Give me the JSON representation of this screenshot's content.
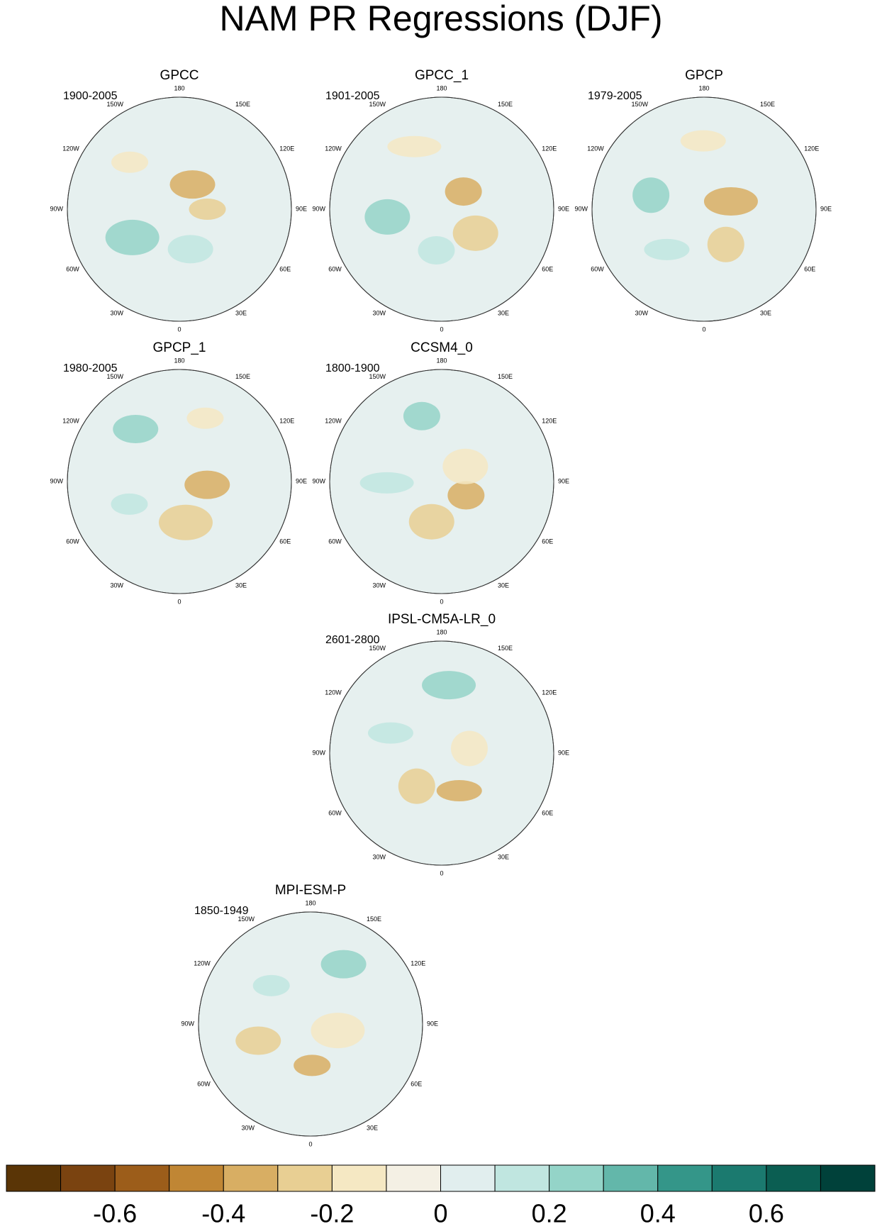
{
  "title": "NAM PR Regressions (DJF)",
  "longitude_labels": [
    "180",
    "150E",
    "120E",
    "90E",
    "60E",
    "30E",
    "0",
    "30W",
    "60W",
    "90W",
    "120W",
    "150W"
  ],
  "panels": [
    {
      "name": "GPCC",
      "period": "1900-2005"
    },
    {
      "name": "GPCC_1",
      "period": "1901-2005"
    },
    {
      "name": "GPCP",
      "period": "1979-2005"
    },
    {
      "name": "GPCP_1",
      "period": "1980-2005"
    },
    {
      "name": "CCSM4_0",
      "period": "1800-1900"
    },
    {
      "name": "IPSL-CM5A-LR_0",
      "period": "2601-2800"
    },
    {
      "name": "MPI-ESM-P",
      "period": "1850-1949"
    }
  ],
  "colorbar": {
    "lim": [
      -0.8,
      0.8
    ],
    "colors": [
      "#5a3506",
      "#7a4310",
      "#9c5d1a",
      "#c08634",
      "#d8ae63",
      "#e8cf93",
      "#f5e8c3",
      "#f4f0e4",
      "#e1eeee",
      "#c0e6e0",
      "#94d4c8",
      "#63b7aa",
      "#349689",
      "#1b7a6f",
      "#0b5e52",
      "#00413a"
    ],
    "ticks": [
      -0.6,
      -0.4,
      -0.2,
      0,
      0.2,
      0.4,
      0.6
    ]
  }
}
